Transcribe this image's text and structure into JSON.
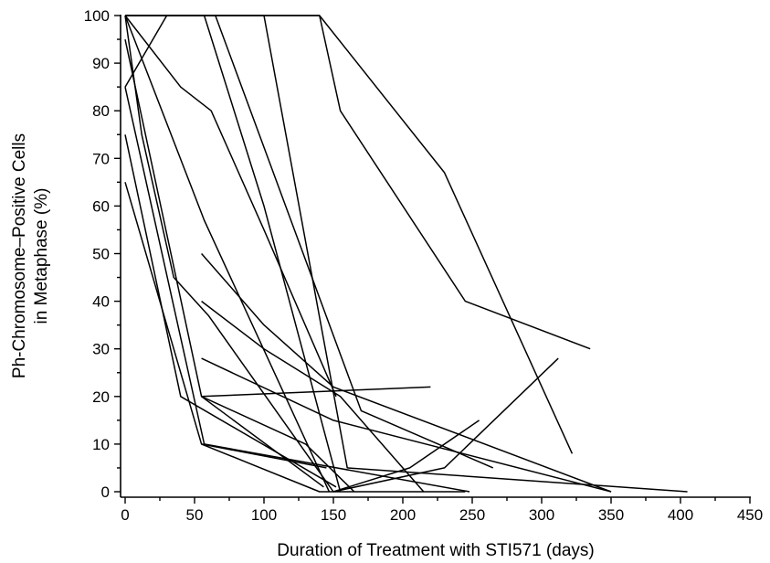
{
  "chart_data": {
    "type": "line",
    "title": "",
    "xlabel": "Duration of Treatment with STI571 (days)",
    "ylabel_line1": "Ph-Chromosome–Positive Cells",
    "ylabel_line2": "in Metaphase (%)",
    "xlim": [
      0,
      450
    ],
    "ylim": [
      0,
      100
    ],
    "x_ticks": [
      0,
      50,
      100,
      150,
      200,
      250,
      300,
      350,
      400,
      450
    ],
    "y_ticks": [
      0,
      10,
      20,
      30,
      40,
      50,
      60,
      70,
      80,
      90,
      100
    ],
    "grid": false,
    "legend": "none",
    "series": [
      {
        "x": [
          0,
          140,
          155,
          245,
          335
        ],
        "y": [
          100,
          100,
          80,
          40,
          30
        ]
      },
      {
        "x": [
          0,
          40,
          62,
          100,
          152
        ],
        "y": [
          100,
          85,
          80,
          55,
          20
        ]
      },
      {
        "x": [
          0,
          140,
          230,
          322
        ],
        "y": [
          100,
          100,
          67,
          8
        ]
      },
      {
        "x": [
          0,
          65,
          170,
          265
        ],
        "y": [
          100,
          100,
          17,
          5
        ]
      },
      {
        "x": [
          0,
          57,
          147
        ],
        "y": [
          100,
          57,
          0
        ]
      },
      {
        "x": [
          0,
          55,
          143
        ],
        "y": [
          95,
          20,
          1
        ]
      },
      {
        "x": [
          0,
          57,
          248
        ],
        "y": [
          85,
          10,
          0
        ]
      },
      {
        "x": [
          0,
          40,
          152
        ],
        "y": [
          75,
          20,
          1
        ]
      },
      {
        "x": [
          0,
          55,
          140,
          245
        ],
        "y": [
          65,
          10,
          0,
          0
        ]
      },
      {
        "x": [
          0,
          30,
          100,
          160,
          405
        ],
        "y": [
          85,
          100,
          100,
          5,
          0
        ]
      },
      {
        "x": [
          55,
          100,
          150,
          350
        ],
        "y": [
          50,
          35,
          22,
          0
        ]
      },
      {
        "x": [
          55,
          100,
          155,
          215
        ],
        "y": [
          40,
          30,
          20,
          0
        ]
      },
      {
        "x": [
          55,
          130,
          165
        ],
        "y": [
          20,
          10,
          0
        ]
      },
      {
        "x": [
          55,
          150,
          350
        ],
        "y": [
          28,
          15,
          0
        ]
      },
      {
        "x": [
          55,
          220
        ],
        "y": [
          20,
          22
        ]
      },
      {
        "x": [
          55,
          145
        ],
        "y": [
          10,
          5
        ]
      },
      {
        "x": [
          150,
          230,
          312
        ],
        "y": [
          0,
          5,
          28
        ]
      },
      {
        "x": [
          150,
          205,
          255
        ],
        "y": [
          0,
          5,
          15
        ]
      },
      {
        "x": [
          0,
          57,
          100,
          155
        ],
        "y": [
          100,
          100,
          60,
          0
        ]
      },
      {
        "x": [
          0,
          12,
          35,
          60,
          150
        ],
        "y": [
          100,
          75,
          45,
          37,
          0
        ]
      }
    ]
  }
}
